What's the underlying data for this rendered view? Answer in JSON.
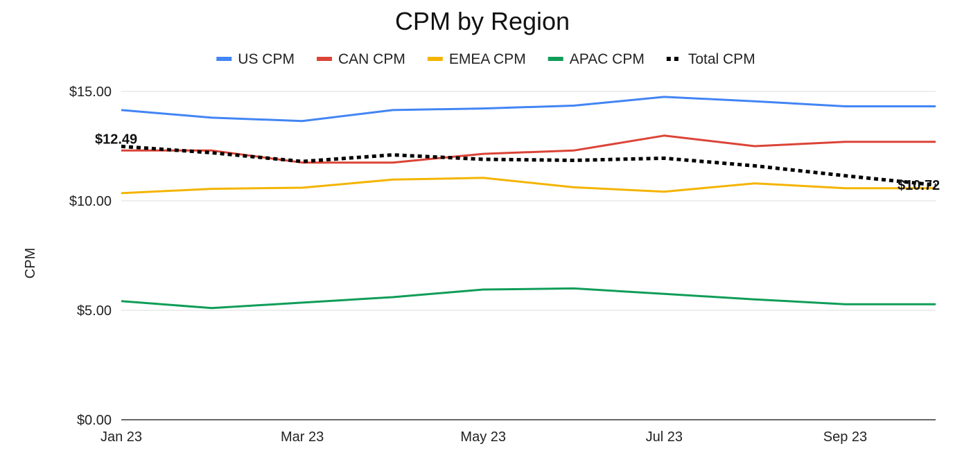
{
  "chart_data": {
    "type": "line",
    "title": "CPM by Region",
    "ylabel": "CPM",
    "xlabel": "",
    "ylim": [
      0,
      15
    ],
    "yticks": [
      {
        "value": 0,
        "label": "$0.00"
      },
      {
        "value": 5,
        "label": "$5.00"
      },
      {
        "value": 10,
        "label": "$10.00"
      },
      {
        "value": 15,
        "label": "$15.00"
      }
    ],
    "x": [
      "Jan 23",
      "Feb 23",
      "Mar 23",
      "Apr 23",
      "May 23",
      "Jun 23",
      "Jul 23",
      "Aug 23",
      "Sep 23",
      "Oct 23"
    ],
    "xtick_labels": [
      "Jan 23",
      "Mar 23",
      "May 23",
      "Jul 23",
      "Sep 23"
    ],
    "legend_position": "top",
    "grid": true,
    "series": [
      {
        "name": "US CPM",
        "color": "#4285f4",
        "style": "solid",
        "values": [
          14.15,
          13.8,
          13.65,
          14.15,
          14.22,
          14.35,
          14.75,
          14.55,
          14.32,
          14.32
        ]
      },
      {
        "name": "CAN CPM",
        "color": "#db4437",
        "style": "solid",
        "values": [
          12.3,
          12.3,
          11.75,
          11.75,
          12.15,
          12.3,
          12.98,
          12.5,
          12.7,
          12.7
        ]
      },
      {
        "name": "EMEA CPM",
        "color": "#f4b400",
        "style": "solid",
        "values": [
          10.35,
          10.55,
          10.6,
          10.97,
          11.05,
          10.62,
          10.42,
          10.8,
          10.58,
          10.58
        ]
      },
      {
        "name": "APAC CPM",
        "color": "#0f9d58",
        "style": "solid",
        "values": [
          5.42,
          5.1,
          5.35,
          5.6,
          5.95,
          6.0,
          5.75,
          5.5,
          5.28,
          5.28
        ]
      },
      {
        "name": "Total CPM",
        "color": "#000000",
        "style": "dotted",
        "values": [
          12.49,
          12.2,
          11.8,
          12.1,
          11.9,
          11.85,
          11.95,
          11.6,
          11.15,
          10.72
        ]
      }
    ],
    "annotations": [
      {
        "series": "Total CPM",
        "index": 0,
        "text": "$12.49"
      },
      {
        "series": "Total CPM",
        "index": 9,
        "text": "$10.72"
      }
    ]
  }
}
